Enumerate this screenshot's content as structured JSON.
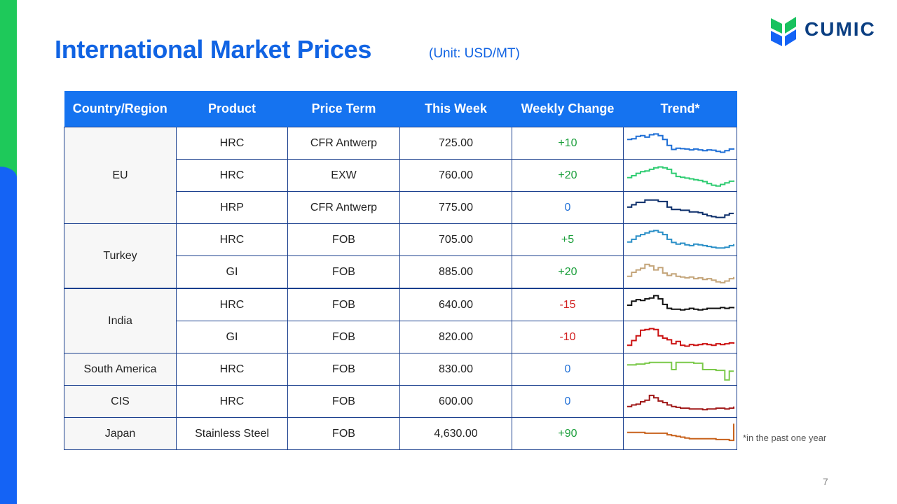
{
  "slide": {
    "title": "International Market Prices",
    "unit": "(Unit: USD/MT)",
    "logo_text": "CUMIC",
    "footnote": "*in the past one year",
    "page_number": "7"
  },
  "colors": {
    "accent_blue": "#1063e3",
    "header_blue": "#1573f0",
    "green_bar": "#1ec95a",
    "positive": "#1a9e3a",
    "negative": "#d22020",
    "zero": "#1f6fd6"
  },
  "table": {
    "headers": [
      "Country/Region",
      "Product",
      "Price Term",
      "This Week",
      "Weekly Change",
      "Trend*"
    ],
    "groups": [
      "EU",
      "Turkey",
      "India",
      "South America",
      "CIS",
      "Japan"
    ],
    "rows": [
      {
        "product": "HRC",
        "term": "CFR Antwerp",
        "price": "725.00",
        "change": "+10",
        "sign": "pos",
        "color": "#1f6fd6",
        "trend": [
          70,
          72,
          78,
          80,
          76,
          82,
          84,
          80,
          70,
          55,
          45,
          48,
          47,
          46,
          44,
          46,
          44,
          42,
          44,
          43,
          40,
          38,
          42,
          46,
          48
        ]
      },
      {
        "product": "HRC",
        "term": "EXW",
        "price": "760.00",
        "change": "+20",
        "sign": "pos",
        "color": "#2ecc71",
        "trend": [
          55,
          60,
          66,
          70,
          72,
          76,
          80,
          82,
          80,
          76,
          66,
          58,
          56,
          54,
          52,
          50,
          48,
          45,
          40,
          36,
          34,
          38,
          42,
          46,
          48
        ]
      },
      {
        "product": "HRP",
        "term": "CFR Antwerp",
        "price": "775.00",
        "change": "0",
        "sign": "zero",
        "color": "#0d2f6b",
        "trend": [
          62,
          68,
          74,
          74,
          80,
          80,
          80,
          76,
          76,
          62,
          56,
          56,
          54,
          54,
          50,
          50,
          48,
          44,
          40,
          38,
          36,
          36,
          42,
          46,
          46
        ]
      },
      {
        "product": "HRC",
        "term": "FOB",
        "price": "705.00",
        "change": "+5",
        "sign": "pos",
        "color": "#2a8fc7",
        "trend": [
          55,
          62,
          70,
          74,
          78,
          82,
          84,
          80,
          74,
          62,
          54,
          50,
          52,
          48,
          46,
          50,
          48,
          46,
          44,
          42,
          40,
          40,
          42,
          46,
          50
        ]
      },
      {
        "product": "GI",
        "term": "FOB",
        "price": "885.00",
        "change": "+20",
        "sign": "pos",
        "color": "#c4a57a",
        "trend": [
          50,
          60,
          66,
          70,
          80,
          76,
          66,
          72,
          58,
          52,
          56,
          50,
          48,
          46,
          48,
          44,
          46,
          42,
          44,
          40,
          36,
          34,
          38,
          44,
          48
        ]
      },
      {
        "product": "HRC",
        "term": "FOB",
        "price": "640.00",
        "change": "-15",
        "sign": "neg",
        "color": "#111111",
        "trend": [
          60,
          70,
          74,
          72,
          76,
          78,
          84,
          76,
          62,
          52,
          50,
          50,
          48,
          50,
          52,
          50,
          48,
          50,
          52,
          52,
          52,
          54,
          52,
          54,
          52
        ]
      },
      {
        "product": "GI",
        "term": "FOB",
        "price": "820.00",
        "change": "-10",
        "sign": "neg",
        "color": "#cc1111",
        "trend": [
          40,
          52,
          64,
          78,
          80,
          82,
          80,
          64,
          58,
          54,
          44,
          50,
          40,
          38,
          42,
          40,
          42,
          44,
          42,
          40,
          44,
          42,
          44,
          46,
          44
        ]
      },
      {
        "product": "HRC",
        "term": "FOB",
        "price": "830.00",
        "change": "0",
        "sign": "zero",
        "color": "#7bc94a",
        "trend": [
          72,
          72,
          74,
          74,
          76,
          78,
          78,
          78,
          78,
          78,
          60,
          78,
          78,
          78,
          78,
          76,
          76,
          60,
          60,
          60,
          58,
          58,
          34,
          56,
          56
        ]
      },
      {
        "product": "HRC",
        "term": "FOB",
        "price": "600.00",
        "change": "0",
        "sign": "zero",
        "color": "#a01818",
        "trend": [
          48,
          52,
          54,
          60,
          64,
          76,
          70,
          62,
          58,
          52,
          48,
          46,
          44,
          44,
          42,
          42,
          42,
          40,
          42,
          42,
          44,
          44,
          42,
          44,
          48
        ]
      },
      {
        "product": "Stainless Steel",
        "term": "FOB",
        "price": "4,630.00",
        "change": "+90",
        "sign": "pos",
        "color": "#c8621c",
        "trend": [
          64,
          64,
          64,
          64,
          62,
          62,
          62,
          62,
          62,
          58,
          56,
          54,
          52,
          50,
          48,
          48,
          48,
          48,
          48,
          48,
          46,
          46,
          46,
          44,
          86
        ]
      }
    ]
  }
}
